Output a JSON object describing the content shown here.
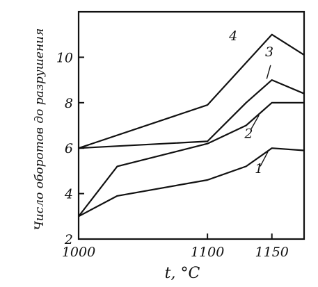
{
  "chart_data": {
    "type": "line",
    "title": "",
    "xlabel": "t, °C",
    "ylabel": "Число оборотов до разрушения",
    "xlim": [
      1000,
      1175
    ],
    "ylim": [
      2,
      12
    ],
    "x_ticks": [
      1000,
      1100,
      1150
    ],
    "y_ticks": [
      2,
      4,
      6,
      8,
      10
    ],
    "grid": false,
    "legend": "none",
    "series": [
      {
        "name": "1",
        "x": [
          1000,
          1030,
          1100,
          1130,
          1150,
          1175
        ],
        "y": [
          3.0,
          3.9,
          4.6,
          5.2,
          6.0,
          5.9
        ]
      },
      {
        "name": "2",
        "x": [
          1000,
          1030,
          1100,
          1130,
          1150,
          1175
        ],
        "y": [
          3.0,
          5.2,
          6.2,
          7.0,
          8.0,
          8.0
        ]
      },
      {
        "name": "3",
        "x": [
          1000,
          1100,
          1130,
          1150,
          1175
        ],
        "y": [
          6.0,
          6.3,
          8.0,
          9.0,
          8.4
        ]
      },
      {
        "name": "4",
        "x": [
          1000,
          1100,
          1150,
          1175
        ],
        "y": [
          6.0,
          7.9,
          11.0,
          10.1
        ]
      }
    ]
  }
}
